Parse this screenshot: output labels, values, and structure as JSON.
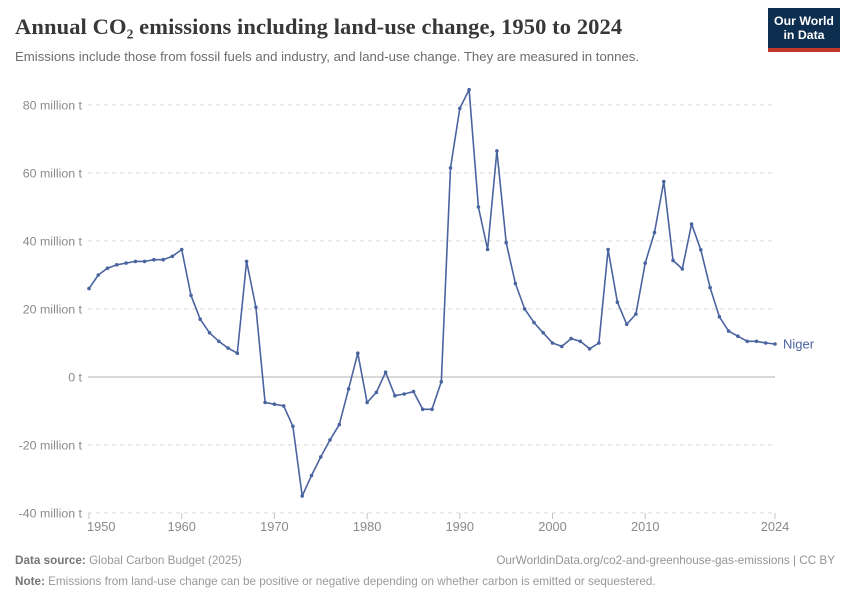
{
  "header": {
    "title": "Annual CO₂ emissions including land-use change, 1950 to 2024",
    "subtitle": "Emissions include those from fossil fuels and industry, and land-use change. They are measured in tonnes."
  },
  "logo": {
    "line1": "Our World",
    "line2": "in Data",
    "bg_color": "#0d2e4f",
    "accent_color": "#c0372b"
  },
  "chart_data": {
    "type": "line",
    "title": "Annual CO₂ emissions including land-use change, 1950 to 2024",
    "xlabel": "",
    "ylabel": "",
    "unit": "million tonnes",
    "xlim": [
      1950,
      2024
    ],
    "ylim": [
      -40,
      85
    ],
    "grid": true,
    "legend": "end-of-line-label",
    "x_ticks": [
      1950,
      1960,
      1970,
      1980,
      1990,
      2000,
      2010,
      2024
    ],
    "y_ticks": [
      {
        "value": 80,
        "label": "80 million t"
      },
      {
        "value": 60,
        "label": "60 million t"
      },
      {
        "value": 40,
        "label": "40 million t"
      },
      {
        "value": 20,
        "label": "20 million t"
      },
      {
        "value": 0,
        "label": "0 t"
      },
      {
        "value": -20,
        "label": "-20 million t"
      },
      {
        "value": -40,
        "label": "-40 million t"
      }
    ],
    "x": [
      1950,
      1951,
      1952,
      1953,
      1954,
      1955,
      1956,
      1957,
      1958,
      1959,
      1960,
      1961,
      1962,
      1963,
      1964,
      1965,
      1966,
      1967,
      1968,
      1969,
      1970,
      1971,
      1972,
      1973,
      1974,
      1975,
      1976,
      1977,
      1978,
      1979,
      1980,
      1981,
      1982,
      1983,
      1984,
      1985,
      1986,
      1987,
      1988,
      1989,
      1990,
      1991,
      1992,
      1993,
      1994,
      1995,
      1996,
      1997,
      1998,
      1999,
      2000,
      2001,
      2002,
      2003,
      2004,
      2005,
      2006,
      2007,
      2008,
      2009,
      2010,
      2011,
      2012,
      2013,
      2014,
      2015,
      2016,
      2017,
      2018,
      2019,
      2020,
      2021,
      2022,
      2023,
      2024
    ],
    "series": [
      {
        "name": "Niger",
        "color": "#4a64a0",
        "values": [
          26,
          30,
          32,
          33,
          33.5,
          34,
          34,
          34.5,
          34.5,
          35.5,
          37.5,
          24,
          17,
          13,
          10.5,
          8.5,
          7,
          34,
          20.5,
          -7.5,
          -8,
          -8.5,
          -14.5,
          -35,
          -29,
          -23.5,
          -18.5,
          -14,
          -3.5,
          7,
          -7.5,
          -4.5,
          1.4,
          -5.5,
          -5,
          -4.3,
          -9.5,
          -9.5,
          -1.4,
          61.5,
          79,
          84.5,
          50,
          37.5,
          66.5,
          39.5,
          27.5,
          20,
          16,
          13,
          10,
          9,
          11.3,
          10.5,
          8.3,
          10,
          37.5,
          22,
          15.5,
          18.5,
          33.5,
          42.5,
          57.5,
          34.3,
          31.8,
          45,
          37.4,
          26.3,
          17.7,
          13.5,
          12,
          10.5,
          10.5,
          10,
          9.7
        ]
      }
    ],
    "colors": {
      "grid": "#dadada",
      "zero_line": "#b3b3b3",
      "axis_text": "#8a8a8a",
      "tick": "#c4c4c4"
    }
  },
  "footer": {
    "source_label": "Data source:",
    "source_value": "Global Carbon Budget (2025)",
    "url": "OurWorldinData.org/co2-and-greenhouse-gas-emissions | CC BY",
    "note_label": "Note:",
    "note_value": "Emissions from land-use change can be positive or negative depending on whether carbon is emitted or sequestered."
  }
}
